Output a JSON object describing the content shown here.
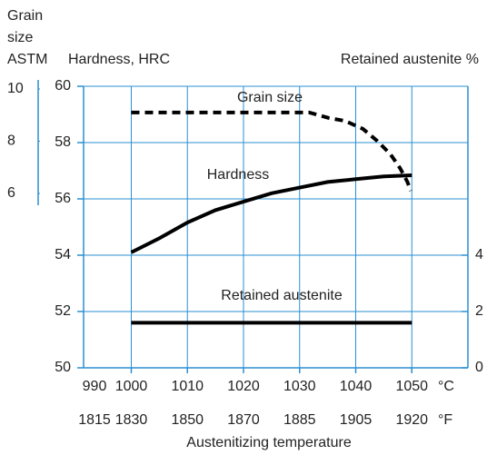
{
  "chart_data": {
    "type": "line",
    "y3label": [
      "Grain",
      "size",
      "ASTM"
    ],
    "ylabel": "Hardness, HRC",
    "y2label": "Retained austenite %",
    "xlabel": "Austenitizing temperature",
    "xunit": "°C",
    "x2unit": "°F",
    "xlim": [
      991.5,
      1060
    ],
    "xticks": [
      990,
      1000,
      1010,
      1020,
      1030,
      1040,
      1050
    ],
    "x2tick_labels": [
      1815,
      1830,
      1850,
      1870,
      1885,
      1905,
      1920
    ],
    "ylim": [
      50,
      60
    ],
    "yticks": [
      50,
      52,
      54,
      56,
      58,
      60
    ],
    "y2lim": [
      0,
      10
    ],
    "y2ticks": [
      0,
      2,
      4
    ],
    "y3lim": [
      6,
      10
    ],
    "y3ticks": [
      6,
      8,
      10
    ],
    "grid": true,
    "series": [
      {
        "name": "Grain size",
        "axis": "y3",
        "dashed": true,
        "color": "#000000",
        "x": [
          1000,
          1031.7,
          1035.2,
          1038.1,
          1041.3,
          1043.8,
          1046.2,
          1047.9,
          1049.2,
          1049.8
        ],
        "values": [
          9.1,
          9.1,
          8.89,
          8.78,
          8.47,
          8.02,
          7.5,
          6.97,
          6.45,
          6.1
        ]
      },
      {
        "name": "Hardness",
        "axis": "y",
        "dashed": false,
        "color": "#000000",
        "x": [
          1000,
          1005,
          1010,
          1015,
          1020,
          1025,
          1030,
          1035,
          1040,
          1045,
          1050
        ],
        "values": [
          54.1,
          54.6,
          55.16,
          55.6,
          55.9,
          56.2,
          56.4,
          56.6,
          56.7,
          56.8,
          56.84
        ]
      },
      {
        "name": "Retained austenite",
        "axis": "y2",
        "dashed": false,
        "color": "#000000",
        "x": [
          1000,
          1050
        ],
        "values": [
          1.6,
          1.6
        ]
      }
    ]
  }
}
